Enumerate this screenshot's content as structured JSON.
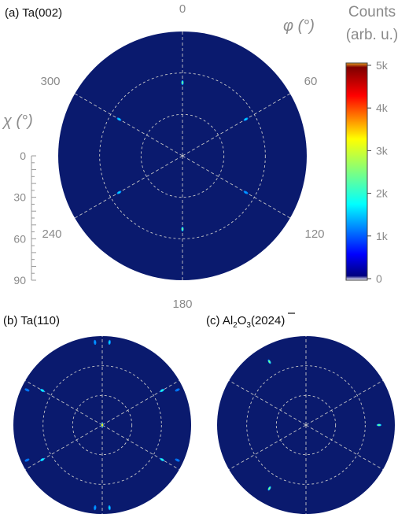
{
  "chart_data": [
    {
      "type": "polar-pole-figure",
      "panel_label": "(a) Ta(002)",
      "angle_labels": [
        "0",
        "60",
        "120",
        "180",
        "240",
        "300"
      ],
      "phi_axis_label": "φ (°)",
      "chi_axis_label": "χ (°)",
      "chi_ticks": [
        "0",
        "30",
        "60",
        "90"
      ],
      "chi_range": [
        0,
        90
      ],
      "rings_chi": [
        30,
        60
      ],
      "spokes_phi": [
        0,
        60,
        120,
        180,
        240,
        300
      ],
      "peaks": [
        {
          "phi": 0,
          "chi": 53,
          "counts": 2500
        },
        {
          "phi": 60,
          "chi": 53,
          "counts": 1800
        },
        {
          "phi": 120,
          "chi": 53,
          "counts": 1500
        },
        {
          "phi": 180,
          "chi": 53,
          "counts": 2600
        },
        {
          "phi": 240,
          "chi": 53,
          "counts": 1800
        },
        {
          "phi": 300,
          "chi": 53,
          "counts": 1800
        }
      ]
    },
    {
      "type": "polar-pole-figure",
      "panel_label": "(b) Ta(110)",
      "rings_chi": [
        30,
        60
      ],
      "spokes_phi": [
        0,
        60,
        120,
        180,
        240,
        300
      ],
      "peaks": [
        {
          "phi": 0,
          "chi": 0,
          "counts": 3400
        },
        {
          "phi": 5,
          "chi": 84,
          "counts": 1800
        },
        {
          "phi": 355,
          "chi": 84,
          "counts": 1500
        },
        {
          "phi": 60,
          "chi": 70,
          "counts": 2300
        },
        {
          "phi": 300,
          "chi": 70,
          "counts": 2200
        },
        {
          "phi": 120,
          "chi": 70,
          "counts": 2300
        },
        {
          "phi": 240,
          "chi": 70,
          "counts": 2200
        },
        {
          "phi": 175,
          "chi": 84,
          "counts": 1800
        },
        {
          "phi": 185,
          "chi": 84,
          "counts": 1500
        },
        {
          "phi": 65,
          "chi": 84,
          "counts": 1300
        },
        {
          "phi": 295,
          "chi": 84,
          "counts": 1300
        },
        {
          "phi": 115,
          "chi": 84,
          "counts": 1300
        },
        {
          "phi": 245,
          "chi": 84,
          "counts": 1300
        }
      ]
    },
    {
      "type": "polar-pole-figure",
      "panel_label_prefix": "(c) Al",
      "panel_label_sub1": "2",
      "panel_label_mid": "O",
      "panel_label_sub2": "3",
      "panel_label_open": "(20",
      "panel_label_bar": "2",
      "panel_label_close": "4)",
      "rings_chi": [
        30,
        60
      ],
      "spokes_phi": [
        0,
        60,
        120,
        180,
        240,
        300
      ],
      "peaks": [
        {
          "phi": 330,
          "chi": 74,
          "counts": 2600
        },
        {
          "phi": 90,
          "chi": 74,
          "counts": 2500
        },
        {
          "phi": 210,
          "chi": 74,
          "counts": 2600
        }
      ]
    }
  ],
  "colorbar": {
    "title_line1": "Counts",
    "title_line2": "(arb. u.)",
    "ticks": [
      "0",
      "1k",
      "2k",
      "3k",
      "4k",
      "5k"
    ],
    "range": [
      0,
      5000
    ],
    "colormap": "jet"
  },
  "colors": {
    "background_disc": "#0a1a6e",
    "grid": "#c8c8c8",
    "label_gray": "#8a8a8a"
  }
}
